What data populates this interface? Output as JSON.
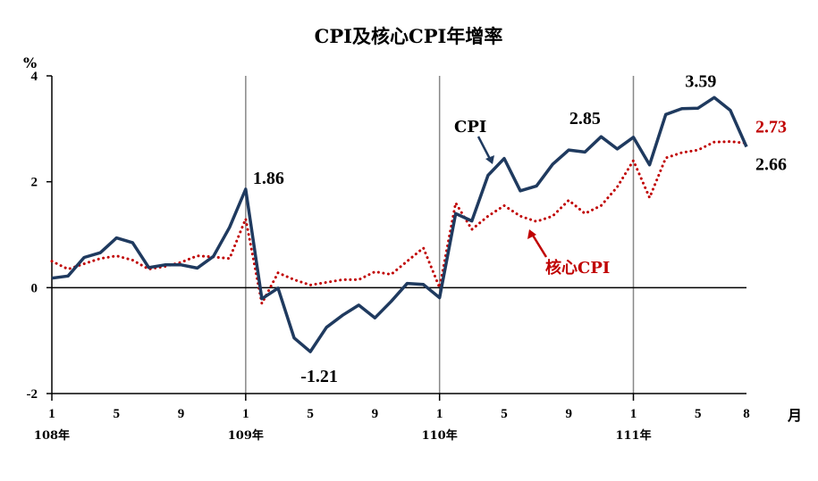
{
  "chart_data": {
    "type": "line",
    "title": "CPI及核心CPI年增率",
    "y_unit": "%",
    "x_unit": "月",
    "ylim": [
      -2,
      4
    ],
    "y_ticks": [
      "4",
      "2",
      "0",
      "-2"
    ],
    "x_ticks": [
      "1",
      "5",
      "9",
      "1",
      "5",
      "9",
      "1",
      "5",
      "9",
      "1",
      "5",
      "8"
    ],
    "year_labels": [
      "108年",
      "109年",
      "110年",
      "111年"
    ],
    "grid": false,
    "colors": {
      "cpi": "#1f3a5f",
      "core": "#c00000",
      "year_divider": "#888888"
    },
    "series": [
      {
        "name": "CPI",
        "style": "solid",
        "values": [
          0.18,
          0.22,
          0.57,
          0.66,
          0.94,
          0.85,
          0.38,
          0.43,
          0.43,
          0.37,
          0.59,
          1.14,
          1.86,
          -0.21,
          -0.01,
          -0.95,
          -1.21,
          -0.75,
          -0.52,
          -0.33,
          -0.57,
          -0.26,
          0.08,
          0.06,
          -0.19,
          1.4,
          1.26,
          2.12,
          2.44,
          1.83,
          1.92,
          2.33,
          2.6,
          2.56,
          2.85,
          2.62,
          2.84,
          2.32,
          3.27,
          3.38,
          3.39,
          3.59,
          3.35,
          2.66
        ]
      },
      {
        "name": "核心CPI",
        "style": "dotted",
        "values": [
          0.5,
          0.35,
          0.45,
          0.55,
          0.6,
          0.52,
          0.35,
          0.4,
          0.48,
          0.6,
          0.58,
          0.55,
          1.3,
          -0.3,
          0.28,
          0.15,
          0.05,
          0.1,
          0.15,
          0.15,
          0.3,
          0.25,
          0.5,
          0.75,
          0.0,
          1.6,
          1.1,
          1.35,
          1.55,
          1.35,
          1.25,
          1.35,
          1.65,
          1.4,
          1.55,
          1.9,
          2.4,
          1.7,
          2.45,
          2.55,
          2.6,
          2.75,
          2.76,
          2.73
        ]
      }
    ],
    "annotations": [
      {
        "text": "1.86",
        "series": "CPI",
        "index": 12,
        "color": "#000000"
      },
      {
        "text": "-1.21",
        "series": "CPI",
        "index": 16,
        "color": "#000000"
      },
      {
        "text": "2.85",
        "series": "CPI",
        "index": 34,
        "color": "#000000"
      },
      {
        "text": "3.59",
        "series": "CPI",
        "index": 41,
        "color": "#000000"
      },
      {
        "text": "2.73",
        "series": "核心CPI",
        "index": 43,
        "color": "#c00000"
      },
      {
        "text": "2.66",
        "series": "CPI",
        "index": 43,
        "color": "#000000"
      }
    ]
  }
}
